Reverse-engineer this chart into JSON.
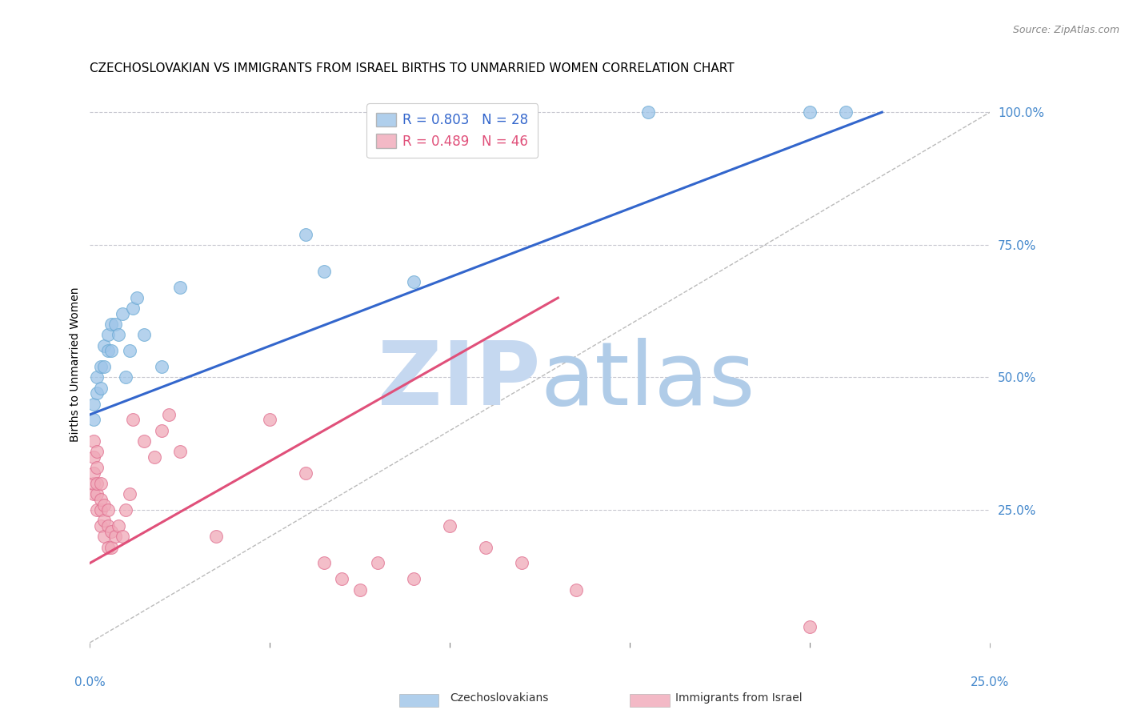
{
  "title": "CZECHOSLOVAKIAN VS IMMIGRANTS FROM ISRAEL BIRTHS TO UNMARRIED WOMEN CORRELATION CHART",
  "source": "Source: ZipAtlas.com",
  "ylabel": "Births to Unmarried Women",
  "ytick_positions": [
    0.25,
    0.5,
    0.75,
    1.0
  ],
  "xlim": [
    0.0,
    0.25
  ],
  "ylim": [
    0.0,
    1.05
  ],
  "bg_color": "#ffffff",
  "grid_color": "#c8c8d0",
  "watermark_zip_color": "#c5d8f0",
  "watermark_atlas_color": "#b0cce8",
  "czech_color": "#9dc4e8",
  "czech_edge_color": "#6aaad4",
  "czech_line_color": "#3366cc",
  "israel_color": "#f0a8b8",
  "israel_edge_color": "#e07090",
  "israel_line_color": "#e0507a",
  "diagonal_color": "#bbbbbb",
  "czech_x": [
    0.001,
    0.001,
    0.002,
    0.002,
    0.003,
    0.003,
    0.004,
    0.004,
    0.005,
    0.005,
    0.006,
    0.006,
    0.007,
    0.008,
    0.009,
    0.01,
    0.011,
    0.012,
    0.013,
    0.015,
    0.02,
    0.025,
    0.06,
    0.065,
    0.09,
    0.155,
    0.2,
    0.21
  ],
  "czech_y": [
    0.42,
    0.45,
    0.47,
    0.5,
    0.48,
    0.52,
    0.52,
    0.56,
    0.55,
    0.58,
    0.55,
    0.6,
    0.6,
    0.58,
    0.62,
    0.5,
    0.55,
    0.63,
    0.65,
    0.58,
    0.52,
    0.67,
    0.77,
    0.7,
    0.68,
    1.0,
    1.0,
    1.0
  ],
  "israel_x": [
    0.001,
    0.001,
    0.001,
    0.001,
    0.001,
    0.002,
    0.002,
    0.002,
    0.002,
    0.002,
    0.003,
    0.003,
    0.003,
    0.003,
    0.004,
    0.004,
    0.004,
    0.005,
    0.005,
    0.005,
    0.006,
    0.006,
    0.007,
    0.008,
    0.009,
    0.01,
    0.011,
    0.012,
    0.015,
    0.018,
    0.02,
    0.022,
    0.025,
    0.035,
    0.05,
    0.06,
    0.065,
    0.07,
    0.075,
    0.08,
    0.09,
    0.1,
    0.11,
    0.12,
    0.135,
    0.2
  ],
  "israel_y": [
    0.28,
    0.3,
    0.32,
    0.35,
    0.38,
    0.25,
    0.28,
    0.3,
    0.33,
    0.36,
    0.22,
    0.25,
    0.27,
    0.3,
    0.2,
    0.23,
    0.26,
    0.18,
    0.22,
    0.25,
    0.18,
    0.21,
    0.2,
    0.22,
    0.2,
    0.25,
    0.28,
    0.42,
    0.38,
    0.35,
    0.4,
    0.43,
    0.36,
    0.2,
    0.42,
    0.32,
    0.15,
    0.12,
    0.1,
    0.15,
    0.12,
    0.22,
    0.18,
    0.15,
    0.1,
    0.03
  ],
  "legend_czech_label": "R = 0.803   N = 28",
  "legend_israel_label": "R = 0.489   N = 46",
  "bottom_czech_label": "Czechoslovakians",
  "bottom_israel_label": "Immigrants from Israel"
}
